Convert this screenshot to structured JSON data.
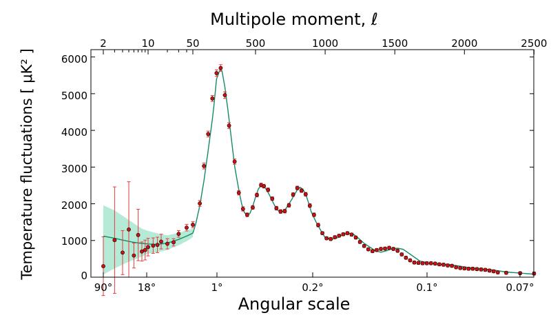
{
  "chart_data": {
    "type": "scatter",
    "title": "",
    "top_axis": {
      "label": "Multipole moment, ℓ",
      "ticks": [
        "2",
        "10",
        "50",
        "500",
        "1000",
        "1500",
        "2000",
        "2500"
      ],
      "scale": "log below 50, linear above 50"
    },
    "bottom_axis": {
      "label": "Angular scale",
      "ticks": [
        "90°",
        "18°",
        "1°",
        "0.2°",
        "0.1°",
        "0.07°"
      ]
    },
    "y_axis": {
      "label": "Temperature fluctuations [ μK² ]",
      "ticks": [
        "0",
        "1000",
        "2000",
        "3000",
        "4000",
        "5000",
        "6000"
      ],
      "ylim": [
        0,
        6200
      ]
    },
    "xlim": [
      1.5,
      2550
    ],
    "grid": false,
    "legend": "none",
    "colors": {
      "data_points": "#cc1111",
      "error_bars": "#e8393a",
      "model_curve": "#128a6a",
      "cosmic_variance_band": "#a8e6cf"
    },
    "series": [
      {
        "type": "line",
        "points": [
          [
            2,
            1120
          ],
          [
            3,
            1060
          ],
          [
            4,
            1010
          ],
          [
            5,
            975
          ],
          [
            6,
            950
          ],
          [
            8,
            920
          ],
          [
            10,
            905
          ],
          [
            13,
            895
          ],
          [
            16,
            905
          ],
          [
            20,
            930
          ],
          [
            25,
            980
          ],
          [
            30,
            1030
          ],
          [
            40,
            1120
          ],
          [
            50,
            1200
          ],
          [
            70,
            1440
          ],
          [
            100,
            1950
          ],
          [
            130,
            2640
          ],
          [
            160,
            3450
          ],
          [
            190,
            4300
          ],
          [
            200,
            4620
          ],
          [
            220,
            5400
          ],
          [
            240,
            5600
          ],
          [
            250,
            5700
          ],
          [
            260,
            5600
          ],
          [
            280,
            5180
          ],
          [
            300,
            4600
          ],
          [
            320,
            3980
          ],
          [
            350,
            3020
          ],
          [
            380,
            2380
          ],
          [
            400,
            2000
          ],
          [
            420,
            1760
          ],
          [
            440,
            1690
          ],
          [
            460,
            1740
          ],
          [
            480,
            1930
          ],
          [
            500,
            2180
          ],
          [
            520,
            2400
          ],
          [
            540,
            2510
          ],
          [
            560,
            2480
          ],
          [
            580,
            2380
          ],
          [
            600,
            2240
          ],
          [
            620,
            2080
          ],
          [
            650,
            1860
          ],
          [
            680,
            1760
          ],
          [
            700,
            1790
          ],
          [
            720,
            1880
          ],
          [
            760,
            2120
          ],
          [
            800,
            2380
          ],
          [
            820,
            2450
          ],
          [
            840,
            2400
          ],
          [
            860,
            2260
          ],
          [
            880,
            2040
          ],
          [
            900,
            1780
          ],
          [
            940,
            1460
          ],
          [
            980,
            1200
          ],
          [
            1000,
            1080
          ],
          [
            1040,
            1030
          ],
          [
            1080,
            1060
          ],
          [
            1120,
            1140
          ],
          [
            1160,
            1200
          ],
          [
            1200,
            1180
          ],
          [
            1240,
            1060
          ],
          [
            1280,
            920
          ],
          [
            1330,
            800
          ],
          [
            1360,
            720
          ],
          [
            1400,
            680
          ],
          [
            1440,
            720
          ],
          [
            1480,
            770
          ],
          [
            1520,
            790
          ],
          [
            1560,
            760
          ],
          [
            1620,
            600
          ],
          [
            1680,
            440
          ],
          [
            1750,
            380
          ],
          [
            1800,
            360
          ],
          [
            1900,
            340
          ],
          [
            2000,
            280
          ],
          [
            2050,
            250
          ],
          [
            2100,
            230
          ],
          [
            2200,
            200
          ],
          [
            2250,
            170
          ],
          [
            2300,
            140
          ],
          [
            2400,
            110
          ],
          [
            2500,
            80
          ]
        ]
      },
      {
        "type": "band",
        "points": [
          [
            2,
            70,
            1960
          ],
          [
            3,
            240,
            1820
          ],
          [
            5,
            420,
            1560
          ],
          [
            8,
            560,
            1320
          ],
          [
            10,
            640,
            1260
          ],
          [
            15,
            690,
            1180
          ],
          [
            20,
            740,
            1140
          ],
          [
            30,
            870,
            1210
          ],
          [
            40,
            980,
            1280
          ],
          [
            50,
            1090,
            1320
          ]
        ]
      },
      {
        "type": "scatter",
        "points": [
          [
            2,
            300,
            800
          ],
          [
            3,
            1010,
            1450
          ],
          [
            4,
            670,
            600
          ],
          [
            5,
            1300,
            1300
          ],
          [
            6,
            590,
            340
          ],
          [
            7,
            1150,
            700
          ],
          [
            8,
            700,
            260
          ],
          [
            9,
            740,
            270
          ],
          [
            10,
            820,
            240
          ],
          [
            12,
            860,
            210
          ],
          [
            14,
            880,
            210
          ],
          [
            16,
            970,
            200
          ],
          [
            20,
            910,
            140
          ],
          [
            25,
            950,
            100
          ],
          [
            30,
            1180,
            90
          ],
          [
            40,
            1350,
            90
          ],
          [
            50,
            1430,
            80
          ],
          [
            100,
            2010,
            80
          ],
          [
            130,
            3030,
            80
          ],
          [
            160,
            3900,
            80
          ],
          [
            190,
            4870,
            80
          ],
          [
            220,
            5560,
            90
          ],
          [
            250,
            5700,
            90
          ],
          [
            280,
            4960,
            90
          ],
          [
            310,
            4130,
            80
          ],
          [
            350,
            3150,
            70
          ],
          [
            380,
            2300,
            60
          ],
          [
            410,
            1860,
            60
          ],
          [
            440,
            1700,
            50
          ],
          [
            480,
            1900,
            50
          ],
          [
            510,
            2240,
            50
          ],
          [
            540,
            2510,
            50
          ],
          [
            560,
            2480,
            50
          ],
          [
            590,
            2380,
            50
          ],
          [
            620,
            2140,
            50
          ],
          [
            650,
            1880,
            50
          ],
          [
            680,
            1790,
            50
          ],
          [
            710,
            1800,
            50
          ],
          [
            740,
            1960,
            50
          ],
          [
            770,
            2250,
            50
          ],
          [
            800,
            2430,
            50
          ],
          [
            830,
            2360,
            50
          ],
          [
            860,
            2260,
            50
          ],
          [
            890,
            1950,
            50
          ],
          [
            920,
            1700,
            50
          ],
          [
            950,
            1420,
            50
          ],
          [
            980,
            1200,
            40
          ],
          [
            1010,
            1060,
            40
          ],
          [
            1040,
            1040,
            40
          ],
          [
            1070,
            1090,
            40
          ],
          [
            1100,
            1130,
            40
          ],
          [
            1130,
            1170,
            40
          ],
          [
            1160,
            1200,
            40
          ],
          [
            1190,
            1160,
            40
          ],
          [
            1220,
            1080,
            40
          ],
          [
            1250,
            960,
            40
          ],
          [
            1280,
            850,
            40
          ],
          [
            1310,
            760,
            40
          ],
          [
            1340,
            710,
            40
          ],
          [
            1370,
            740,
            40
          ],
          [
            1400,
            770,
            40
          ],
          [
            1430,
            780,
            40
          ],
          [
            1460,
            800,
            40
          ],
          [
            1490,
            770,
            40
          ],
          [
            1520,
            720,
            40
          ],
          [
            1550,
            620,
            40
          ],
          [
            1580,
            530,
            40
          ],
          [
            1610,
            460,
            40
          ],
          [
            1640,
            400,
            40
          ],
          [
            1670,
            390,
            40
          ],
          [
            1700,
            380,
            40
          ],
          [
            1730,
            380,
            40
          ],
          [
            1760,
            380,
            40
          ],
          [
            1790,
            370,
            40
          ],
          [
            1820,
            350,
            40
          ],
          [
            1850,
            340,
            40
          ],
          [
            1880,
            320,
            40
          ],
          [
            1910,
            310,
            40
          ],
          [
            1940,
            270,
            40
          ],
          [
            1970,
            250,
            40
          ],
          [
            2000,
            240,
            40
          ],
          [
            2030,
            230,
            40
          ],
          [
            2060,
            230,
            40
          ],
          [
            2090,
            220,
            40
          ],
          [
            2120,
            210,
            40
          ],
          [
            2150,
            200,
            40
          ],
          [
            2180,
            180,
            40
          ],
          [
            2210,
            160,
            40
          ],
          [
            2240,
            130,
            40
          ],
          [
            2300,
            120,
            40
          ],
          [
            2400,
            110,
            40
          ],
          [
            2500,
            100,
            40
          ]
        ]
      }
    ]
  }
}
